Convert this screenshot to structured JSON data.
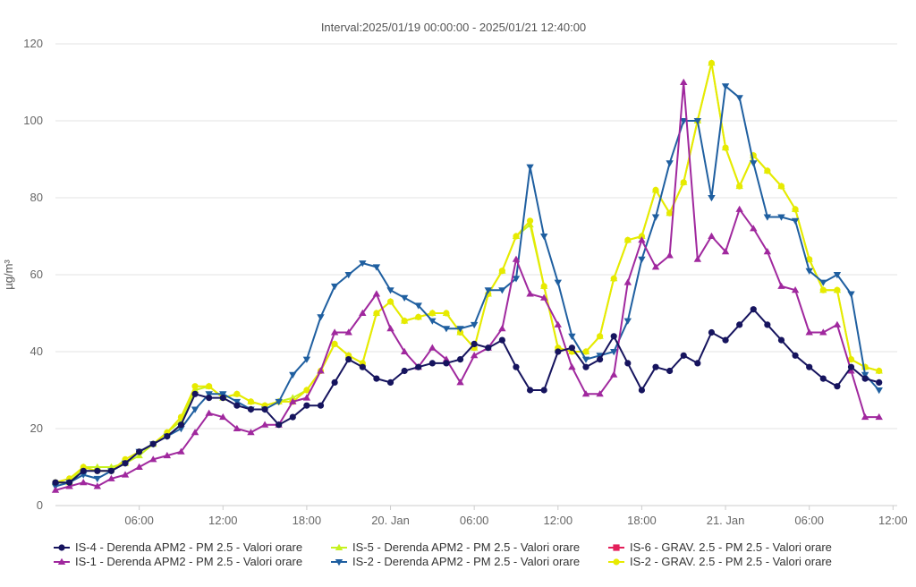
{
  "chart_data": {
    "type": "line",
    "subtitle": "Interval:2025/01/19 00:00:00 - 2025/01/21 12:40:00",
    "ylabel": "µg/m³",
    "ylim": [
      0,
      120
    ],
    "yticks": [
      0,
      20,
      40,
      60,
      80,
      100,
      120
    ],
    "x_range": [
      0,
      59
    ],
    "x_unit": "hours from 2025/01/19 00:00",
    "xticks": [
      {
        "x": 6,
        "label": "06:00"
      },
      {
        "x": 12,
        "label": "12:00"
      },
      {
        "x": 18,
        "label": "18:00"
      },
      {
        "x": 24,
        "label": "20. Jan"
      },
      {
        "x": 30,
        "label": "06:00"
      },
      {
        "x": 36,
        "label": "12:00"
      },
      {
        "x": 42,
        "label": "18:00"
      },
      {
        "x": 48,
        "label": "21. Jan"
      },
      {
        "x": 54,
        "label": "06:00"
      },
      {
        "x": 60,
        "label": "12:00"
      }
    ],
    "x_start": 0,
    "x_step": 1,
    "grid": "horizontal",
    "legend_position": "bottom",
    "series": [
      {
        "name": "IS-5 - Derenda APM2 - PM 2.5 - Valori orare",
        "color": "#c6f21f",
        "marker": "triangle",
        "values": [
          6,
          6,
          10,
          10,
          10,
          11,
          13,
          16,
          19,
          22,
          30,
          31,
          28,
          29,
          27,
          26,
          27,
          28,
          30,
          35,
          42,
          39,
          37,
          50,
          53,
          48,
          49,
          50,
          50,
          45,
          41,
          55,
          61,
          70,
          73,
          57,
          41,
          40,
          40,
          44,
          59,
          69,
          70,
          82,
          76,
          84,
          100,
          115,
          93,
          83,
          91,
          87,
          83,
          77,
          64,
          56,
          56,
          38,
          36,
          35
        ]
      },
      {
        "name": "IS-2 - GRAV. 2.5 - PM 2.5 - Valori orare",
        "color": "#e7ea00",
        "marker": "circle",
        "values": [
          6,
          7,
          10,
          9,
          9,
          12,
          14,
          16,
          19,
          23,
          31,
          31,
          28,
          29,
          27,
          26,
          27,
          27,
          30,
          35,
          42,
          39,
          37,
          50,
          53,
          48,
          49,
          50,
          50,
          45,
          41,
          55,
          61,
          70,
          74,
          57,
          41,
          40,
          40,
          44,
          59,
          69,
          70,
          82,
          76,
          84,
          100,
          115,
          93,
          83,
          91,
          87,
          83,
          77,
          64,
          56,
          56,
          38,
          36,
          35
        ]
      },
      {
        "name": "IS-2 - Derenda APM2 - PM 2.5 - Valori orare",
        "color": "#1f5fa0",
        "marker": "triangle-down",
        "values": [
          5,
          6,
          8,
          7,
          9,
          11,
          14,
          16,
          18,
          20,
          25,
          29,
          29,
          27,
          25,
          25,
          27,
          34,
          38,
          49,
          57,
          60,
          63,
          62,
          56,
          54,
          52,
          48,
          46,
          46,
          47,
          56,
          56,
          59,
          88,
          70,
          58,
          44,
          38,
          39,
          40,
          48,
          64,
          75,
          89,
          100,
          100,
          80,
          109,
          106,
          89,
          75,
          75,
          74,
          61,
          58,
          60,
          55,
          34,
          30
        ]
      },
      {
        "name": "IS-1 - Derenda APM2 - PM 2.5 - Valori orare",
        "color": "#a0289e",
        "marker": "triangle",
        "values": [
          4,
          5,
          6,
          5,
          7,
          8,
          10,
          12,
          13,
          14,
          19,
          24,
          23,
          20,
          19,
          21,
          21,
          27,
          28,
          35,
          45,
          45,
          50,
          55,
          46,
          40,
          36,
          41,
          38,
          32,
          39,
          41,
          46,
          64,
          55,
          54,
          47,
          36,
          29,
          29,
          34,
          58,
          69,
          62,
          65,
          110,
          64,
          70,
          66,
          77,
          72,
          66,
          57,
          56,
          45,
          45,
          47,
          35,
          23,
          23
        ]
      },
      {
        "name": "IS-4 - Derenda APM2 - PM 2.5 - Valori orare",
        "color": "#16145e",
        "marker": "circle",
        "values": [
          6,
          6,
          9,
          9,
          9,
          11,
          14,
          16,
          18,
          21,
          29,
          28,
          28,
          26,
          25,
          25,
          21,
          23,
          26,
          26,
          32,
          38,
          36,
          33,
          32,
          35,
          36,
          37,
          37,
          38,
          42,
          41,
          43,
          36,
          30,
          30,
          40,
          41,
          36,
          38,
          44,
          37,
          30,
          36,
          35,
          39,
          37,
          45,
          43,
          47,
          51,
          47,
          43,
          39,
          36,
          33,
          31,
          36,
          33,
          32
        ]
      },
      {
        "name": "IS-6 - GRAV. 2.5 - PM 2.5 - Valori orare",
        "color": "#e31f5a",
        "marker": "square",
        "values": []
      }
    ]
  },
  "legend": [
    {
      "label": "IS-4 - Derenda APM2 - PM 2.5 - Valori orare",
      "color": "#16145e",
      "marker": "circle"
    },
    {
      "label": "IS-5 - Derenda APM2 - PM 2.5 - Valori orare",
      "color": "#c6f21f",
      "marker": "triangle"
    },
    {
      "label": "IS-6 - GRAV. 2.5 - PM 2.5 - Valori orare",
      "color": "#e31f5a",
      "marker": "square"
    },
    {
      "label": "IS-1 - Derenda APM2 - PM 2.5 - Valori orare",
      "color": "#a0289e",
      "marker": "triangle"
    },
    {
      "label": "IS-2 - Derenda APM2 - PM 2.5 - Valori orare",
      "color": "#1f5fa0",
      "marker": "triangle-down"
    },
    {
      "label": "IS-2 - GRAV. 2.5 - PM 2.5 - Valori orare",
      "color": "#e7ea00",
      "marker": "circle"
    }
  ]
}
